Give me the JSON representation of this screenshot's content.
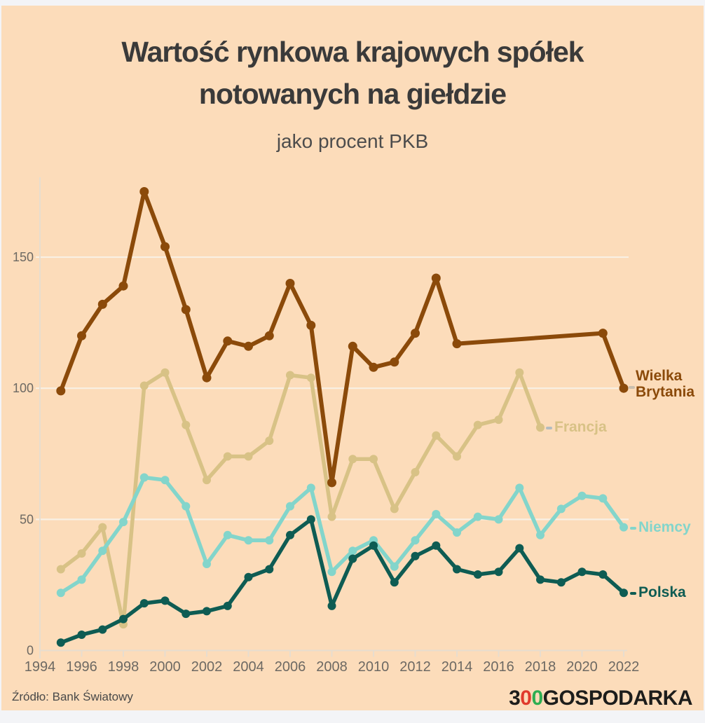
{
  "title": {
    "line1": "Wartość rynkowa krajowych spółek",
    "line2": "notowanych na giełdzie",
    "subtitle": "jako procent PKB",
    "color": "#3a3a3a"
  },
  "footer": {
    "source": "Źródło: Bank Światowy",
    "logo": {
      "t1": "3",
      "t2": "0",
      "t3": "0",
      "t4": "GOSPODARKA",
      "color_black": "#1d1d1b",
      "color_red": "#e03a2c",
      "color_green": "#2fae52"
    }
  },
  "frame": {
    "background": "#fcdcba",
    "outer_strip": "#f3f4f7",
    "gridline_color": "#f8f0e4",
    "axis_color": "#e7ddcf",
    "tick_label_color": "#6d6963"
  },
  "chart_data": {
    "type": "line",
    "title": "Wartość rynkowa krajowych spółek notowanych na giełdzie",
    "subtitle": "jako procent PKB",
    "xlabel": "",
    "ylabel": "",
    "x_ticks": [
      1994,
      1996,
      1998,
      2000,
      2002,
      2004,
      2006,
      2008,
      2010,
      2012,
      2014,
      2016,
      2018,
      2020,
      2022
    ],
    "y_ticks": [
      0,
      50,
      100,
      150
    ],
    "xlim": [
      1994,
      2022.5
    ],
    "ylim": [
      0,
      180
    ],
    "grid": "horizontal only",
    "legend_position": "right edge, at line ends",
    "note": "Wielka Brytania has no data 2015-2020 (straight segment 2014-2021); Francja ends at 2018",
    "series": [
      {
        "name": "Wielka Brytania",
        "color": "#8b4a0a",
        "dash_color": "#c9bfae",
        "points": [
          [
            1995,
            99
          ],
          [
            1996,
            120
          ],
          [
            1997,
            132
          ],
          [
            1998,
            139
          ],
          [
            1999,
            175
          ],
          [
            2000,
            154
          ],
          [
            2001,
            130
          ],
          [
            2002,
            104
          ],
          [
            2003,
            118
          ],
          [
            2004,
            116
          ],
          [
            2005,
            120
          ],
          [
            2006,
            140
          ],
          [
            2007,
            124
          ],
          [
            2008,
            64
          ],
          [
            2009,
            116
          ],
          [
            2010,
            108
          ],
          [
            2011,
            110
          ],
          [
            2012,
            121
          ],
          [
            2013,
            142
          ],
          [
            2014,
            117
          ],
          [
            2021,
            121
          ],
          [
            2022,
            100
          ]
        ]
      },
      {
        "name": "Francja",
        "color": "#d8c286",
        "dash_color": "#b3bcc0",
        "points": [
          [
            1995,
            31
          ],
          [
            1996,
            37
          ],
          [
            1997,
            47
          ],
          [
            1998,
            10
          ],
          [
            1999,
            101
          ],
          [
            2000,
            106
          ],
          [
            2001,
            86
          ],
          [
            2002,
            65
          ],
          [
            2003,
            74
          ],
          [
            2004,
            74
          ],
          [
            2005,
            80
          ],
          [
            2006,
            105
          ],
          [
            2007,
            104
          ],
          [
            2008,
            51
          ],
          [
            2009,
            73
          ],
          [
            2010,
            73
          ],
          [
            2011,
            54
          ],
          [
            2012,
            68
          ],
          [
            2013,
            82
          ],
          [
            2014,
            74
          ],
          [
            2015,
            86
          ],
          [
            2016,
            88
          ],
          [
            2017,
            106
          ],
          [
            2018,
            85
          ]
        ]
      },
      {
        "name": "Niemcy",
        "color": "#83d5cb",
        "dash_color": "#83d5cb",
        "points": [
          [
            1995,
            22
          ],
          [
            1996,
            27
          ],
          [
            1997,
            38
          ],
          [
            1998,
            49
          ],
          [
            1999,
            66
          ],
          [
            2000,
            65
          ],
          [
            2001,
            55
          ],
          [
            2002,
            33
          ],
          [
            2003,
            44
          ],
          [
            2004,
            42
          ],
          [
            2005,
            42
          ],
          [
            2006,
            55
          ],
          [
            2007,
            62
          ],
          [
            2008,
            30
          ],
          [
            2009,
            38
          ],
          [
            2010,
            42
          ],
          [
            2011,
            32
          ],
          [
            2012,
            42
          ],
          [
            2013,
            52
          ],
          [
            2014,
            45
          ],
          [
            2015,
            51
          ],
          [
            2016,
            50
          ],
          [
            2017,
            62
          ],
          [
            2018,
            44
          ],
          [
            2019,
            54
          ],
          [
            2020,
            59
          ],
          [
            2021,
            58
          ],
          [
            2022,
            47
          ]
        ]
      },
      {
        "name": "Polska",
        "color": "#0e5c53",
        "dash_color": "#0e5c53",
        "points": [
          [
            1995,
            3
          ],
          [
            1996,
            6
          ],
          [
            1997,
            8
          ],
          [
            1998,
            12
          ],
          [
            1999,
            18
          ],
          [
            2000,
            19
          ],
          [
            2001,
            14
          ],
          [
            2002,
            15
          ],
          [
            2003,
            17
          ],
          [
            2004,
            28
          ],
          [
            2005,
            31
          ],
          [
            2006,
            44
          ],
          [
            2007,
            50
          ],
          [
            2008,
            17
          ],
          [
            2009,
            35
          ],
          [
            2010,
            40
          ],
          [
            2011,
            26
          ],
          [
            2012,
            36
          ],
          [
            2013,
            40
          ],
          [
            2014,
            31
          ],
          [
            2015,
            29
          ],
          [
            2016,
            30
          ],
          [
            2017,
            39
          ],
          [
            2018,
            27
          ],
          [
            2019,
            26
          ],
          [
            2020,
            30
          ],
          [
            2021,
            29
          ],
          [
            2022,
            22
          ]
        ]
      }
    ]
  }
}
